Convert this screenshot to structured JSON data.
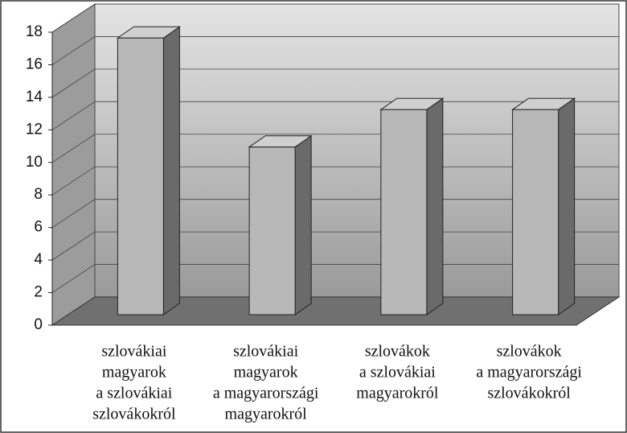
{
  "chart_data": {
    "type": "bar3d",
    "categories": [
      [
        "szlovákiai",
        "magyarok",
        "a szlovákiai",
        "szlovákokról"
      ],
      [
        "szlovákiai",
        "magyarok",
        "a magyarországi",
        "magyarokról"
      ],
      [
        "szlovákok",
        "a szlovákiai",
        "magyarokról"
      ],
      [
        "szlovákok",
        "a magyarországi",
        "szlovákokról"
      ]
    ],
    "values": [
      17,
      10.3,
      12.6,
      12.6
    ],
    "color": "#b8b8b8",
    "ylim": [
      0,
      18
    ],
    "yticks": [
      0,
      2,
      4,
      6,
      8,
      10,
      12,
      14,
      16,
      18
    ],
    "grid": true
  }
}
